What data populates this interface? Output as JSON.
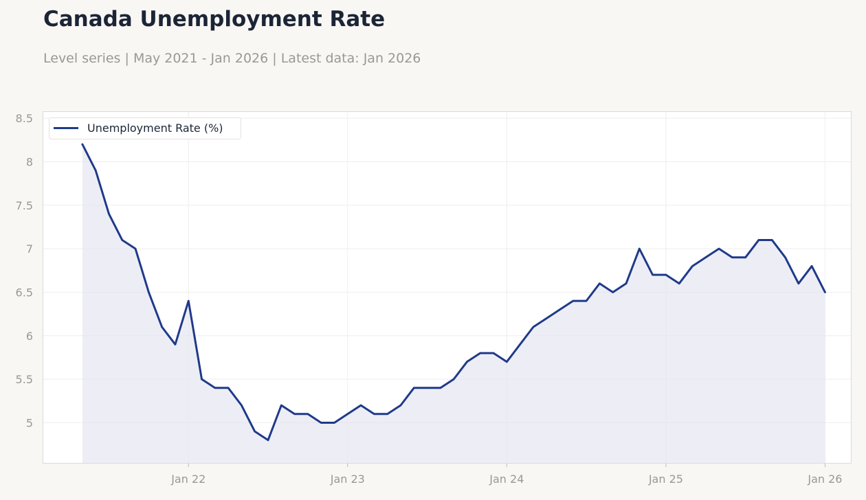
{
  "title": "Canada Unemployment Rate",
  "subtitle": "Level series | May 2021 - Jan 2026 | Latest data: Jan 2026",
  "colors": {
    "line": "#1f3a8a",
    "area": "#e3e5ef",
    "grid": "#eeeeee",
    "tick_text": "#9a9894",
    "title": "#1c2536",
    "background": "#f8f7f4"
  },
  "chart_data": {
    "type": "line",
    "series": [
      {
        "name": "Unemployment Rate (%)",
        "x": [
          "2021-05",
          "2021-06",
          "2021-07",
          "2021-08",
          "2021-09",
          "2021-10",
          "2021-11",
          "2021-12",
          "2022-01",
          "2022-02",
          "2022-03",
          "2022-04",
          "2022-05",
          "2022-06",
          "2022-07",
          "2022-08",
          "2022-09",
          "2022-10",
          "2022-11",
          "2022-12",
          "2023-01",
          "2023-02",
          "2023-03",
          "2023-04",
          "2023-05",
          "2023-06",
          "2023-07",
          "2023-08",
          "2023-09",
          "2023-10",
          "2023-11",
          "2023-12",
          "2024-01",
          "2024-02",
          "2024-03",
          "2024-04",
          "2024-05",
          "2024-06",
          "2024-07",
          "2024-08",
          "2024-09",
          "2024-10",
          "2024-11",
          "2024-12",
          "2025-01",
          "2025-02",
          "2025-03",
          "2025-04",
          "2025-05",
          "2025-06",
          "2025-07",
          "2025-08",
          "2025-09",
          "2025-10",
          "2025-11",
          "2025-12",
          "2026-01"
        ],
        "values": [
          8.2,
          7.9,
          7.4,
          7.1,
          7.0,
          6.5,
          6.1,
          5.9,
          6.4,
          5.5,
          5.4,
          5.4,
          5.2,
          4.9,
          4.8,
          5.2,
          5.1,
          5.1,
          5.0,
          5.0,
          5.1,
          5.2,
          5.1,
          5.1,
          5.2,
          5.4,
          5.4,
          5.4,
          5.5,
          5.7,
          5.8,
          5.8,
          5.7,
          5.9,
          6.1,
          6.2,
          6.3,
          6.4,
          6.4,
          6.6,
          6.5,
          6.6,
          7.0,
          6.7,
          6.7,
          6.6,
          6.8,
          6.9,
          7.0,
          6.9,
          6.9,
          7.1,
          7.1,
          6.9,
          6.6,
          6.8,
          6.5
        ]
      }
    ],
    "x_ticks": [
      {
        "date": "2022-01",
        "label": "Jan 22"
      },
      {
        "date": "2023-01",
        "label": "Jan 23"
      },
      {
        "date": "2024-01",
        "label": "Jan 24"
      },
      {
        "date": "2025-01",
        "label": "Jan 25"
      },
      {
        "date": "2026-01",
        "label": "Jan 26"
      }
    ],
    "y_ticks": [
      5,
      5.5,
      6,
      6.5,
      7,
      7.5,
      8,
      8.5
    ],
    "y_tick_labels": [
      "5",
      "5.5",
      "6",
      "6.5",
      "7",
      "7.5",
      "8",
      "8.5"
    ],
    "ylim": [
      4.53,
      8.58
    ],
    "xlim": [
      "2021-02",
      "2026-03"
    ],
    "legend_position": "top-left",
    "grid": true,
    "fill_under_line": true
  }
}
